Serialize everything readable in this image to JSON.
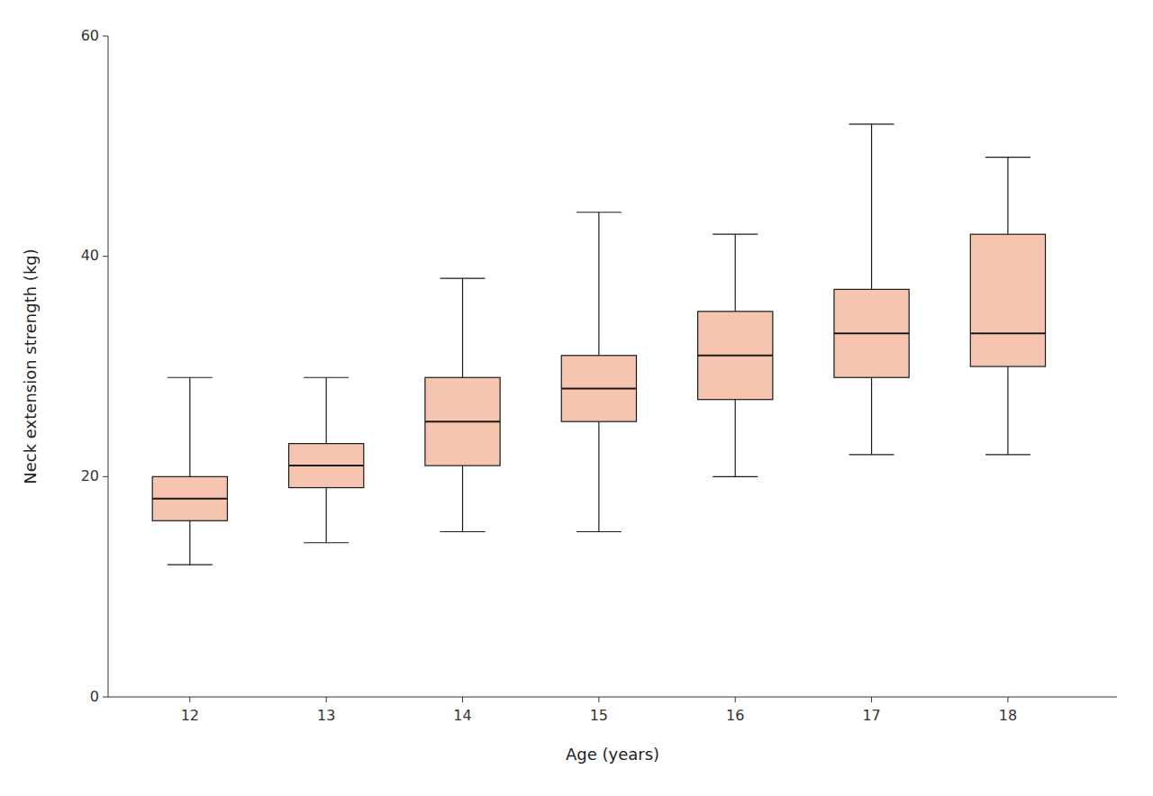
{
  "chart_data": {
    "type": "box",
    "x": [
      12,
      13,
      14,
      15,
      16,
      17,
      18
    ],
    "whisker_low": [
      12,
      14,
      15,
      15,
      20,
      22,
      22
    ],
    "q1": [
      16,
      19,
      21,
      25,
      27,
      29,
      30
    ],
    "median": [
      18,
      21,
      25,
      28,
      31,
      33,
      33
    ],
    "q3": [
      20,
      23,
      29,
      31,
      35,
      37,
      42
    ],
    "whisker_high": [
      29,
      29,
      38,
      44,
      42,
      52,
      49
    ],
    "color": "#f5c5b0",
    "x_label": "Age (years)",
    "y_label": "Neck extension strength (kg)",
    "xlim": [
      11.4,
      18.8
    ],
    "xticks": [
      12,
      13,
      14,
      15,
      16,
      17,
      18
    ],
    "ylim": [
      0,
      60
    ],
    "yticks": [
      0,
      20,
      40,
      60
    ],
    "grid": false
  }
}
